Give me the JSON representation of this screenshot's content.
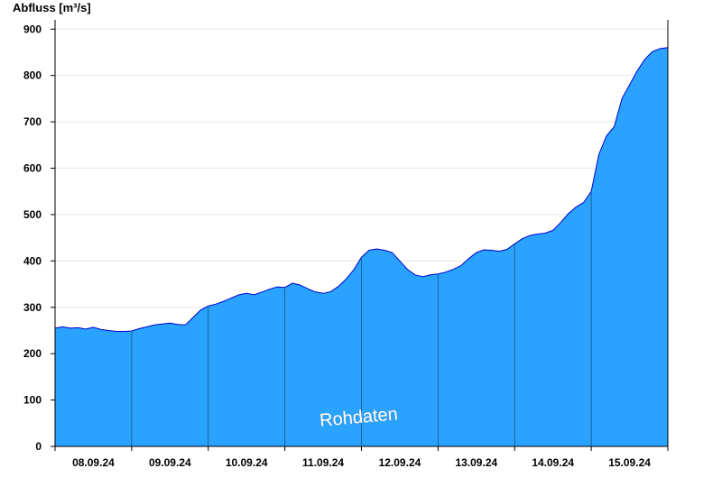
{
  "chart_data": {
    "type": "area",
    "ylabel": "Abfluss [m³/s]",
    "ylim": [
      0,
      920
    ],
    "yticks": [
      0,
      100,
      200,
      300,
      400,
      500,
      600,
      700,
      800,
      900
    ],
    "xlim": [
      0,
      8
    ],
    "xticks": [
      {
        "x": 0.5,
        "label": "08.09.24"
      },
      {
        "x": 1.5,
        "label": "09.09.24"
      },
      {
        "x": 2.5,
        "label": "10.09.24"
      },
      {
        "x": 3.5,
        "label": "11.09.24"
      },
      {
        "x": 4.5,
        "label": "12.09.24"
      },
      {
        "x": 5.5,
        "label": "13.09.24"
      },
      {
        "x": 6.5,
        "label": "14.09.24"
      },
      {
        "x": 7.5,
        "label": "15.09.24"
      }
    ],
    "day_boundaries": [
      1,
      2,
      3,
      4,
      5,
      6,
      7
    ],
    "watermark": "Rohdaten",
    "grid": true,
    "colors": {
      "fill": "#29a3ff",
      "line": "#0000cc",
      "grid": "#e6e6e6",
      "axis": "#000000"
    },
    "series": [
      {
        "x": [
          0,
          0.1,
          0.2,
          0.3,
          0.4,
          0.5,
          0.6,
          0.7,
          0.8,
          0.9,
          1.0,
          1.1,
          1.2,
          1.3,
          1.4,
          1.5,
          1.6,
          1.7,
          1.8,
          1.9,
          2.0,
          2.1,
          2.2,
          2.3,
          2.4,
          2.5,
          2.6,
          2.7,
          2.8,
          2.9,
          3.0,
          3.1,
          3.2,
          3.3,
          3.4,
          3.5,
          3.6,
          3.7,
          3.8,
          3.9,
          4.0,
          4.1,
          4.2,
          4.3,
          4.4,
          4.5,
          4.6,
          4.7,
          4.8,
          4.9,
          5.0,
          5.1,
          5.2,
          5.3,
          5.4,
          5.5,
          5.6,
          5.7,
          5.8,
          5.9,
          6.0,
          6.1,
          6.2,
          6.3,
          6.4,
          6.5,
          6.6,
          6.7,
          6.8,
          6.9,
          7.0,
          7.1,
          7.2,
          7.3,
          7.4,
          7.5,
          7.6,
          7.7,
          7.8,
          7.9,
          8.0
        ],
        "values": [
          255,
          258,
          255,
          256,
          253,
          257,
          252,
          250,
          248,
          248,
          249,
          254,
          258,
          262,
          264,
          266,
          263,
          262,
          278,
          294,
          303,
          307,
          313,
          320,
          327,
          330,
          327,
          333,
          339,
          344,
          343,
          352,
          348,
          340,
          333,
          330,
          334,
          345,
          361,
          381,
          408,
          423,
          426,
          423,
          418,
          400,
          382,
          370,
          366,
          370,
          372,
          376,
          382,
          390,
          405,
          418,
          424,
          423,
          421,
          425,
          437,
          448,
          455,
          458,
          460,
          466,
          483,
          502,
          516,
          526,
          550,
          630,
          670,
          690,
          750,
          780,
          810,
          835,
          852,
          858,
          860
        ]
      }
    ]
  }
}
